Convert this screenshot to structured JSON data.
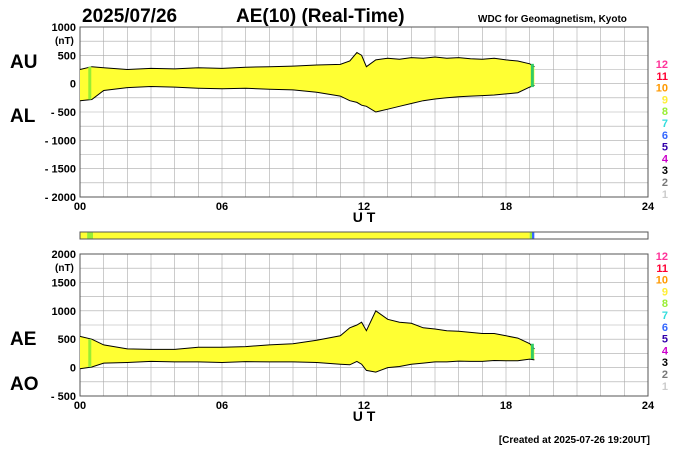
{
  "header": {
    "date": "2025/07/26",
    "title": "AE(10) (Real-Time)",
    "source": "WDC for Geomagnetism, Kyoto"
  },
  "footer": {
    "created": "[Created at 2025-07-26 19:20UT]"
  },
  "legend": {
    "items": [
      {
        "label": "12",
        "color": "#ff3399"
      },
      {
        "label": "11",
        "color": "#ff0033"
      },
      {
        "label": "10",
        "color": "#ff9900"
      },
      {
        "label": "9",
        "color": "#ffee33"
      },
      {
        "label": "8",
        "color": "#99ee33"
      },
      {
        "label": "7",
        "color": "#33dddd"
      },
      {
        "label": "6",
        "color": "#3366ff"
      },
      {
        "label": "5",
        "color": "#3300aa"
      },
      {
        "label": "4",
        "color": "#cc00cc"
      },
      {
        "label": "3",
        "color": "#000000"
      },
      {
        "label": "2",
        "color": "#777777"
      },
      {
        "label": "1",
        "color": "#cccccc"
      }
    ]
  },
  "chart_data": [
    {
      "type": "area",
      "labels": {
        "upper": "AU",
        "lower": "AL"
      },
      "xlabel": "U T",
      "unit": "(nT)",
      "xlim": [
        0,
        24
      ],
      "ylim": [
        -2000,
        1000
      ],
      "yticks": [
        1000,
        500,
        0,
        -500,
        -1000,
        -1500,
        -2000
      ],
      "ytick_labels": [
        "1000",
        "500",
        "0",
        "- 500",
        "- 1000",
        "- 1500",
        "- 2000"
      ],
      "xticks": [
        0,
        6,
        12,
        18,
        24
      ],
      "xtick_labels": [
        "00",
        "06",
        "12",
        "18",
        "24"
      ],
      "fill_color": "#ffff33",
      "series": [
        {
          "name": "AU",
          "x": [
            0,
            0.5,
            1,
            2,
            3,
            4,
            5,
            6,
            7,
            8,
            9,
            10,
            11,
            11.4,
            11.7,
            11.9,
            12.1,
            12.5,
            13,
            13.5,
            14,
            14.5,
            15,
            15.5,
            16,
            16.5,
            17,
            17.5,
            18,
            18.5,
            19,
            19.2
          ],
          "values": [
            250,
            300,
            280,
            250,
            270,
            260,
            280,
            270,
            290,
            300,
            310,
            330,
            340,
            400,
            550,
            500,
            300,
            420,
            450,
            430,
            460,
            450,
            470,
            450,
            460,
            440,
            430,
            450,
            420,
            400,
            350,
            300
          ]
        },
        {
          "name": "AL",
          "x": [
            0,
            0.5,
            1,
            2,
            3,
            4,
            5,
            6,
            7,
            8,
            9,
            10,
            11,
            11.4,
            11.7,
            11.9,
            12.1,
            12.5,
            13,
            13.5,
            14,
            14.5,
            15,
            15.5,
            16,
            16.5,
            17,
            17.5,
            18,
            18.5,
            19,
            19.2
          ],
          "values": [
            -300,
            -280,
            -120,
            -70,
            -50,
            -60,
            -80,
            -90,
            -80,
            -100,
            -110,
            -150,
            -220,
            -300,
            -330,
            -380,
            -400,
            -500,
            -450,
            -400,
            -350,
            -300,
            -270,
            -250,
            -230,
            -220,
            -210,
            -200,
            -180,
            -160,
            -60,
            -30
          ]
        }
      ]
    },
    {
      "type": "area",
      "labels": {
        "upper": "AE",
        "lower": "AO"
      },
      "xlabel": "U T",
      "unit": "(nT)",
      "xlim": [
        0,
        24
      ],
      "ylim": [
        -500,
        2000
      ],
      "yticks": [
        2000,
        1500,
        1000,
        500,
        0,
        -500
      ],
      "ytick_labels": [
        "2000",
        "1500",
        "1000",
        "500",
        "0",
        "- 500"
      ],
      "xticks": [
        0,
        6,
        12,
        18,
        24
      ],
      "xtick_labels": [
        "00",
        "06",
        "12",
        "18",
        "24"
      ],
      "fill_color": "#ffff33",
      "series": [
        {
          "name": "AE",
          "x": [
            0,
            0.5,
            1,
            2,
            3,
            4,
            5,
            6,
            7,
            8,
            9,
            10,
            11,
            11.4,
            11.7,
            11.9,
            12.1,
            12.5,
            13,
            13.5,
            14,
            14.5,
            15,
            15.5,
            16,
            16.5,
            17,
            17.5,
            18,
            18.5,
            19,
            19.2
          ],
          "values": [
            550,
            500,
            400,
            330,
            320,
            320,
            360,
            360,
            370,
            400,
            420,
            480,
            560,
            700,
            750,
            800,
            650,
            1000,
            850,
            800,
            780,
            700,
            680,
            650,
            640,
            620,
            600,
            600,
            560,
            520,
            420,
            330
          ]
        },
        {
          "name": "AO",
          "x": [
            0,
            0.5,
            1,
            2,
            3,
            4,
            5,
            6,
            7,
            8,
            9,
            10,
            11,
            11.4,
            11.7,
            11.9,
            12.1,
            12.5,
            13,
            13.5,
            14,
            14.5,
            15,
            15.5,
            16,
            16.5,
            17,
            17.5,
            18,
            18.5,
            19,
            19.2
          ],
          "values": [
            -20,
            10,
            80,
            90,
            110,
            100,
            100,
            90,
            105,
            100,
            100,
            90,
            60,
            50,
            110,
            60,
            -50,
            -80,
            0,
            20,
            60,
            80,
            100,
            100,
            115,
            110,
            110,
            125,
            120,
            120,
            150,
            135
          ]
        }
      ]
    }
  ],
  "coverage_bar": {
    "x_start": 0,
    "x_end": 24,
    "segments": [
      {
        "x0": 0,
        "x1": 0.3,
        "color": "#ffff33"
      },
      {
        "x0": 0.3,
        "x1": 0.55,
        "color": "#99ee33"
      },
      {
        "x0": 0.55,
        "x1": 19.0,
        "color": "#ffff33"
      },
      {
        "x0": 19.0,
        "x1": 19.1,
        "color": "#99ee33"
      },
      {
        "x0": 19.1,
        "x1": 19.2,
        "color": "#3366ff"
      },
      {
        "x0": 19.2,
        "x1": 24,
        "color": "#ffffff"
      }
    ]
  }
}
